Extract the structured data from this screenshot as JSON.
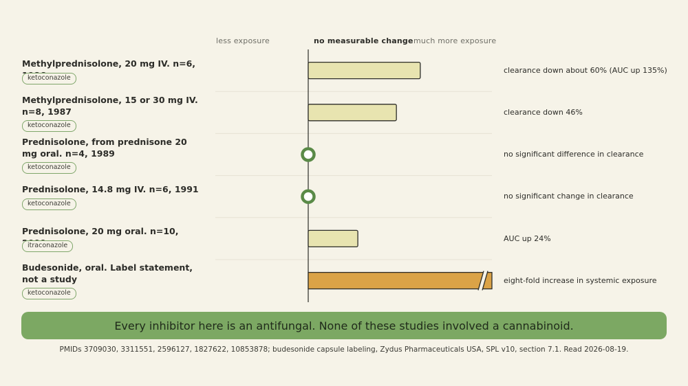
{
  "axis": {
    "left_label": "less exposure",
    "center_label": "no measurable change",
    "right_label": "much more exposure"
  },
  "colors": {
    "bar_fill": "#e8e4b0",
    "bar_fill_large": "#dba347",
    "bar_stroke": "#2c2c28",
    "marker_ring": "#5a8a47",
    "banner": "#7ca863"
  },
  "chart_data": {
    "type": "bar",
    "orientation": "horizontal",
    "scale": "relative exposure vs. no measurable change (0 = no change)",
    "categories": [
      "Methylprednisolone, 20 mg IV. n=6, 1986",
      "Methylprednisolone, 15 or 30 mg IV. n=8, 1987",
      "Prednisolone, from prednisone 20 mg oral. n=4, 1989",
      "Prednisolone, 14.8 mg IV. n=6, 1991",
      "Prednisolone, 20 mg oral. n=10, 2000",
      "Budesonide, oral. Label statement, not a study"
    ],
    "inhibitors": [
      "ketoconazole",
      "ketoconazole",
      "ketoconazole",
      "ketoconazole",
      "itraconazole",
      "ketoconazole"
    ],
    "values": [
      0.61,
      0.48,
      0,
      0,
      0.27,
      1.0
    ],
    "markers": [
      "bar",
      "bar",
      "circle",
      "circle",
      "bar",
      "bar-truncated"
    ],
    "annotations": [
      "clearance down about 60% (AUC up 135%)",
      "clearance down 46%",
      "no significant difference in clearance",
      "no significant change in clearance",
      "AUC up 24%",
      "eight-fold increase in systemic exposure"
    ],
    "xlim": [
      -0.51,
      1.0
    ]
  },
  "banner": "Every inhibitor here is an antifungal. None of these studies involved a cannabinoid.",
  "footer": "PMIDs 3709030, 3311551, 2596127, 1827622, 10853878; budesonide capsule labeling, Zydus Pharmaceuticals USA, SPL v10, section 7.1. Read 2026-08-19."
}
